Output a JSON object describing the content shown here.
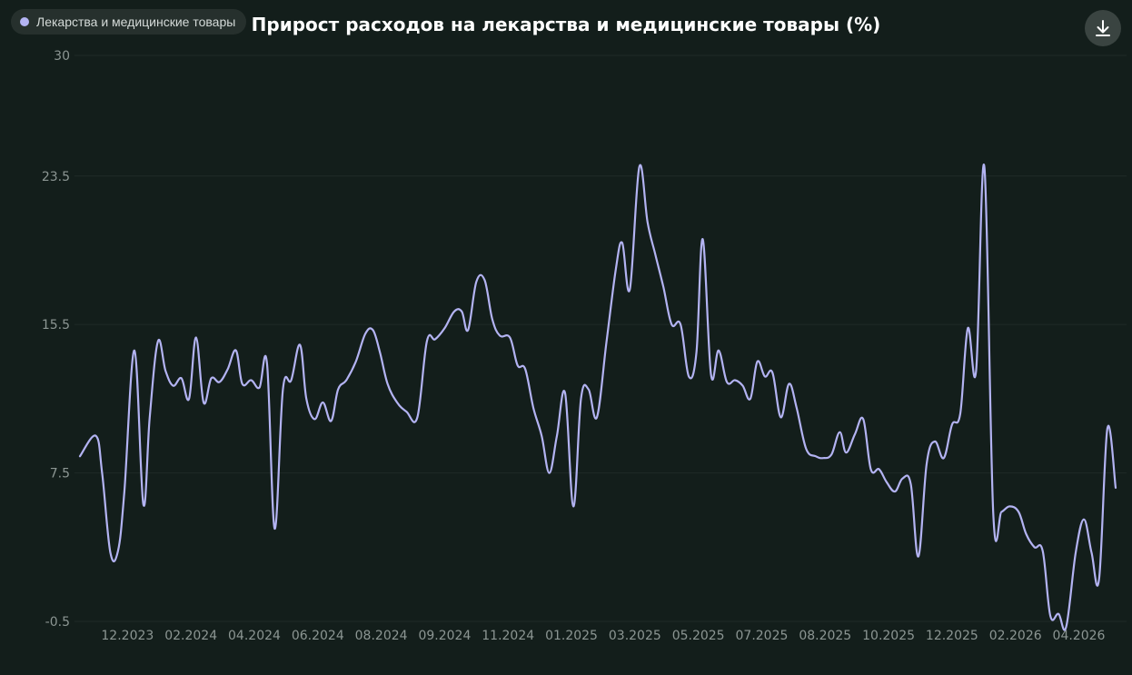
{
  "legend": {
    "label": "Лекарства и медицинские товары"
  },
  "header": {
    "title": "Прирост расходов на лекарства и медицинские товары (%)"
  },
  "colors": {
    "series": "#b3b3f2",
    "background": "#131e1b",
    "grid": "#1f2a27",
    "tick": "#8c9693"
  },
  "icons": {
    "download": "download-icon"
  },
  "chart_data": {
    "type": "line",
    "title": "Прирост расходов на лекарства и медицинские товары (%)",
    "xlabel": "",
    "ylabel": "",
    "ylim": [
      -0.5,
      30
    ],
    "yticks": [
      30,
      23.5,
      15.5,
      7.5,
      -0.5
    ],
    "xticks": [
      {
        "label": "12.2023",
        "x": 7.5
      },
      {
        "label": "02.2024",
        "x": 17.5
      },
      {
        "label": "04.2024",
        "x": 27.5
      },
      {
        "label": "06.2024",
        "x": 37.5
      },
      {
        "label": "08.2024",
        "x": 47.5
      },
      {
        "label": "09.2024",
        "x": 57.5
      },
      {
        "label": "11.2024",
        "x": 67.5
      },
      {
        "label": "01.2025",
        "x": 77.5
      },
      {
        "label": "03.2025",
        "x": 87.5
      },
      {
        "label": "05.2025",
        "x": 97.5
      },
      {
        "label": "07.2025",
        "x": 107.5
      },
      {
        "label": "08.2025",
        "x": 117.5
      },
      {
        "label": "10.2025",
        "x": 127.5
      },
      {
        "label": "12.2025",
        "x": 137.5
      },
      {
        "label": "02.2026",
        "x": 147.5
      },
      {
        "label": "04.2026",
        "x": 157.5
      }
    ],
    "grid": true,
    "legend_position": "top-left",
    "series": [
      {
        "name": "Лекарства и медицинские товары",
        "points": [
          [
            0,
            8.4
          ],
          [
            2.5,
            9.5
          ],
          [
            3.5,
            7.5
          ],
          [
            4.8,
            3.2
          ],
          [
            6,
            3.3
          ],
          [
            7,
            6.5
          ],
          [
            8.6,
            14.1
          ],
          [
            10,
            5.8
          ],
          [
            11,
            10.5
          ],
          [
            12.3,
            14.6
          ],
          [
            13.5,
            13
          ],
          [
            14.7,
            12.2
          ],
          [
            16,
            12.6
          ],
          [
            17.2,
            11.5
          ],
          [
            18.3,
            14.8
          ],
          [
            19.5,
            11.3
          ],
          [
            20.7,
            12.6
          ],
          [
            22,
            12.4
          ],
          [
            23.3,
            13.1
          ],
          [
            24.6,
            14.1
          ],
          [
            25.6,
            12.3
          ],
          [
            27,
            12.5
          ],
          [
            28.3,
            12.1
          ],
          [
            29.5,
            13.4
          ],
          [
            30.7,
            4.5
          ],
          [
            32,
            12
          ],
          [
            33.3,
            12.5
          ],
          [
            34.7,
            14.4
          ],
          [
            35.7,
            11.5
          ],
          [
            37,
            10.4
          ],
          [
            38.3,
            11.3
          ],
          [
            39.6,
            10.3
          ],
          [
            40.7,
            12
          ],
          [
            42,
            12.5
          ],
          [
            43.5,
            13.5
          ],
          [
            45,
            15
          ],
          [
            46.2,
            15.2
          ],
          [
            47.3,
            14
          ],
          [
            48.5,
            12.3
          ],
          [
            50,
            11.3
          ],
          [
            51.5,
            10.8
          ],
          [
            53.2,
            10.5
          ],
          [
            54.7,
            14.6
          ],
          [
            56,
            14.7
          ],
          [
            57.5,
            15.3
          ],
          [
            59,
            16.2
          ],
          [
            60.2,
            16.2
          ],
          [
            61.2,
            15.2
          ],
          [
            62.5,
            17.8
          ],
          [
            63.8,
            17.9
          ],
          [
            65,
            15.8
          ],
          [
            66.2,
            14.9
          ],
          [
            67.8,
            14.8
          ],
          [
            69,
            13.3
          ],
          [
            70.2,
            13.1
          ],
          [
            71.5,
            11
          ],
          [
            72.8,
            9.5
          ],
          [
            74,
            7.5
          ],
          [
            75.2,
            9.5
          ],
          [
            76.5,
            11.8
          ],
          [
            77.8,
            5.7
          ],
          [
            79,
            11.5
          ],
          [
            80.2,
            12
          ],
          [
            81.5,
            10.5
          ],
          [
            83,
            14.5
          ],
          [
            84.5,
            18.5
          ],
          [
            85.5,
            19.9
          ],
          [
            86.7,
            17.4
          ],
          [
            88.2,
            24
          ],
          [
            89.5,
            21
          ],
          [
            90.7,
            19.3
          ],
          [
            92,
            17.5
          ],
          [
            93.3,
            15.5
          ],
          [
            94.7,
            15.5
          ],
          [
            96,
            12.7
          ],
          [
            97.2,
            14
          ],
          [
            98.2,
            20.1
          ],
          [
            99.5,
            12.8
          ],
          [
            100.7,
            14.1
          ],
          [
            102,
            12.4
          ],
          [
            103.3,
            12.5
          ],
          [
            104.5,
            12.2
          ],
          [
            105.7,
            11.5
          ],
          [
            106.8,
            13.5
          ],
          [
            108,
            12.7
          ],
          [
            109.2,
            12.9
          ],
          [
            110.5,
            10.5
          ],
          [
            111.8,
            12.3
          ],
          [
            113,
            11
          ],
          [
            114.5,
            8.8
          ],
          [
            116,
            8.4
          ],
          [
            117.2,
            8.3
          ],
          [
            118.5,
            8.5
          ],
          [
            119.8,
            9.7
          ],
          [
            120.8,
            8.6
          ],
          [
            122.2,
            9.6
          ],
          [
            123.5,
            10.4
          ],
          [
            124.7,
            7.7
          ],
          [
            126,
            7.7
          ],
          [
            127.2,
            7
          ],
          [
            128.5,
            6.5
          ],
          [
            129.7,
            7.2
          ],
          [
            131,
            6.9
          ],
          [
            132.2,
            3
          ],
          [
            133.5,
            8
          ],
          [
            134.8,
            9.2
          ],
          [
            136.2,
            8.3
          ],
          [
            137.5,
            10.1
          ],
          [
            138.8,
            10.7
          ],
          [
            140,
            15.3
          ],
          [
            141.3,
            13
          ],
          [
            142.6,
            24
          ],
          [
            144,
            5.3
          ],
          [
            145.3,
            5.4
          ],
          [
            146.6,
            5.7
          ],
          [
            148,
            5.4
          ],
          [
            149.2,
            4.2
          ],
          [
            150.5,
            3.5
          ],
          [
            151.8,
            3.3
          ],
          [
            153,
            -0.2
          ],
          [
            154.3,
            -0.1
          ],
          [
            155.5,
            -0.8
          ],
          [
            157,
            3.2
          ],
          [
            158.3,
            5
          ],
          [
            159.5,
            3.2
          ],
          [
            160.7,
            1.8
          ],
          [
            162,
            9.9
          ],
          [
            163.3,
            6.7
          ]
        ]
      }
    ]
  }
}
